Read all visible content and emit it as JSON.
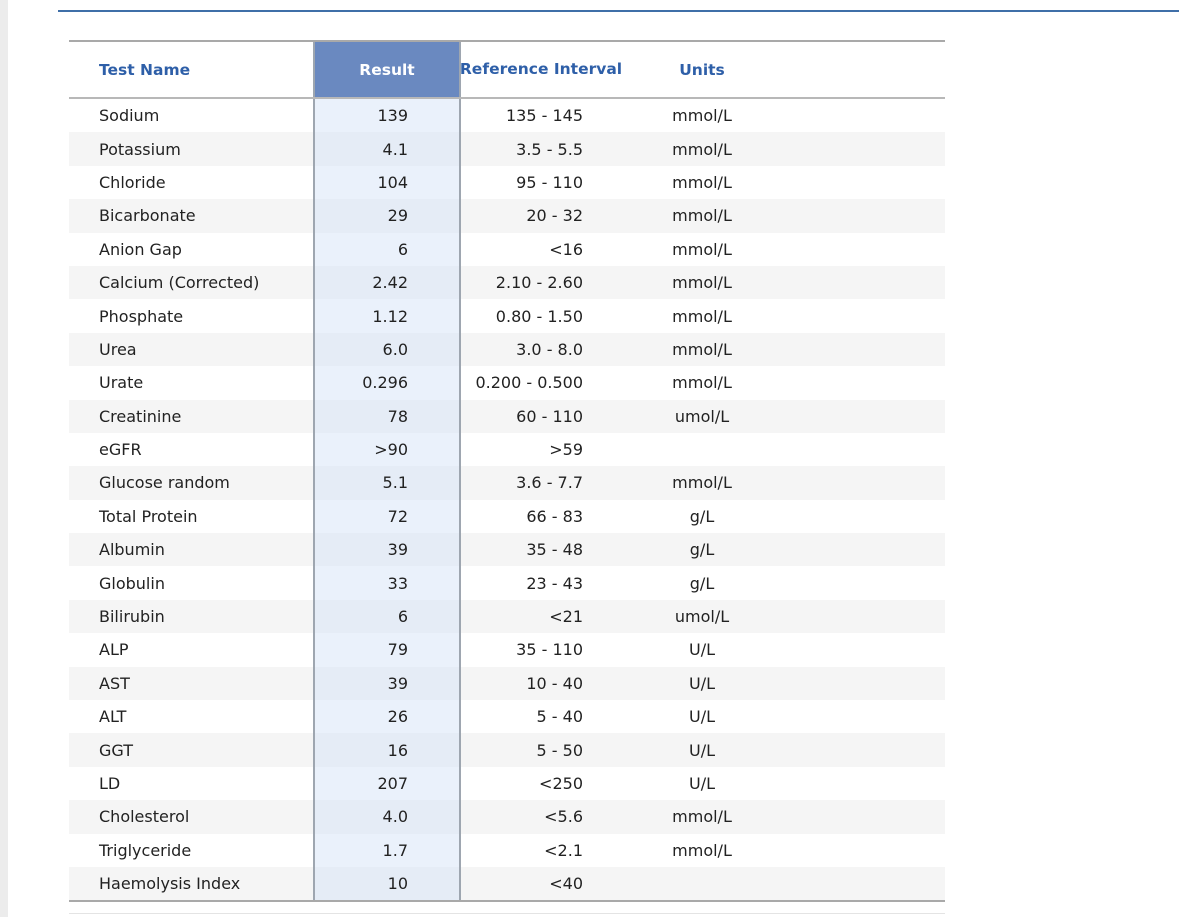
{
  "table": {
    "columns": [
      "Test Name",
      "Result",
      "Reference Interval",
      "Units"
    ],
    "rows": [
      [
        "Sodium",
        "139",
        "135 - 145",
        "mmol/L"
      ],
      [
        "Potassium",
        "4.1",
        "3.5 - 5.5",
        "mmol/L"
      ],
      [
        "Chloride",
        "104",
        "95 - 110",
        "mmol/L"
      ],
      [
        "Bicarbonate",
        "29",
        "20 - 32",
        "mmol/L"
      ],
      [
        "Anion Gap",
        "6",
        "<16",
        "mmol/L"
      ],
      [
        "Calcium (Corrected)",
        "2.42",
        "2.10 - 2.60",
        "mmol/L"
      ],
      [
        "Phosphate",
        "1.12",
        "0.80 - 1.50",
        "mmol/L"
      ],
      [
        "Urea",
        "6.0",
        "3.0 - 8.0",
        "mmol/L"
      ],
      [
        "Urate",
        "0.296",
        "0.200 - 0.500",
        "mmol/L"
      ],
      [
        "Creatinine",
        "78",
        "60 - 110",
        "umol/L"
      ],
      [
        "eGFR",
        ">90",
        ">59",
        null
      ],
      [
        "Glucose random",
        "5.1",
        "3.6 - 7.7",
        "mmol/L"
      ],
      [
        "Total Protein",
        "72",
        "66 - 83",
        "g/L"
      ],
      [
        "Albumin",
        "39",
        "35 - 48",
        "g/L"
      ],
      [
        "Globulin",
        "33",
        "23 - 43",
        "g/L"
      ],
      [
        "Bilirubin",
        "6",
        "<21",
        "umol/L"
      ],
      [
        "ALP",
        "79",
        "35 - 110",
        "U/L"
      ],
      [
        "AST",
        "39",
        "10 - 40",
        "U/L"
      ],
      [
        "ALT",
        "26",
        "5 - 40",
        "U/L"
      ],
      [
        "GGT",
        "16",
        "5 - 50",
        "U/L"
      ],
      [
        "LD",
        "207",
        "<250",
        "U/L"
      ],
      [
        "Cholesterol",
        "4.0",
        "<5.6",
        "mmol/L"
      ],
      [
        "Triglyceride",
        "1.7",
        "<2.1",
        "mmol/L"
      ],
      [
        "Haemolysis Index",
        "10",
        "<40",
        null
      ]
    ]
  }
}
